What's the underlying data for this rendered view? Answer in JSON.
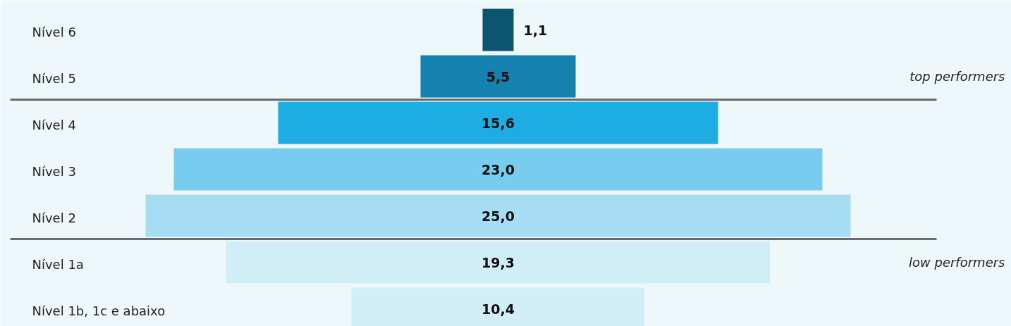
{
  "chart_data": {
    "type": "other",
    "categories": [
      "Nível 6",
      "Nível 5",
      "Nível 4",
      "Nível 3",
      "Nível 2",
      "Nível 1a",
      "Nível 1b, 1c e abaixo"
    ],
    "values": [
      1.1,
      5.5,
      15.6,
      23.0,
      25.0,
      19.3,
      10.4
    ],
    "value_labels": [
      "1,1",
      "5,5",
      "15,6",
      "23,0",
      "25,0",
      "19,3",
      "10,4"
    ],
    "colors": [
      "#0b5571",
      "#1581ae",
      "#1eade3",
      "#78cdee",
      "#a6ddf3",
      "#d0edf8",
      "#d0edf8"
    ],
    "annotations": [
      {
        "text": "top performers",
        "y": "Nível 5"
      },
      {
        "text": "low performers",
        "y": "Nível 1a"
      }
    ]
  }
}
